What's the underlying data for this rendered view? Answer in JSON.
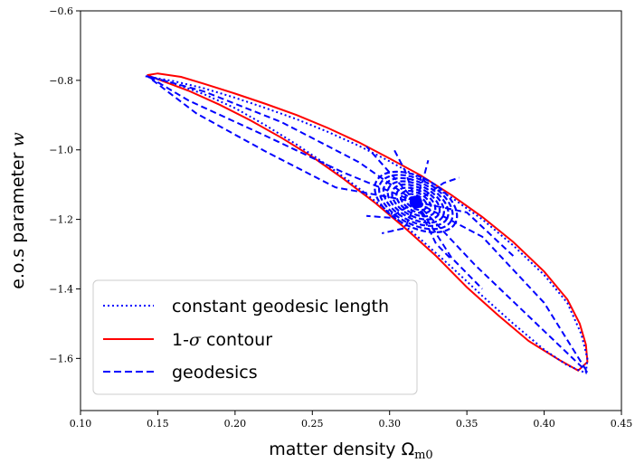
{
  "chart_data": {
    "type": "line",
    "xlabel": "matter density Ω",
    "xlabel_sub": "m0",
    "ylabel": "e.o.s parameter ",
    "ylabel_var": "w",
    "xlim": [
      0.1,
      0.45
    ],
    "ylim": [
      -1.75,
      -0.6
    ],
    "xticks": [
      "0.10",
      "0.15",
      "0.20",
      "0.25",
      "0.30",
      "0.35",
      "0.40",
      "0.45"
    ],
    "yticks": [
      "−0.6",
      "−0.8",
      "−1.0",
      "−1.2",
      "−1.4",
      "−1.6"
    ],
    "legend_placement": "lower-left",
    "grid": false,
    "center": [
      0.317,
      -1.15
    ],
    "legend": [
      {
        "label": "constant geodesic length",
        "style": "dotted",
        "color": "#0000ff"
      },
      {
        "label": "1-σ contour",
        "style": "solid",
        "color": "#ff0000"
      },
      {
        "label": "geodesics",
        "style": "dashed",
        "color": "#0000ff"
      }
    ],
    "series": [
      {
        "name": "1-σ contour",
        "style": "solid",
        "color": "#ff0000",
        "x": [
          0.143,
          0.15,
          0.165,
          0.18,
          0.2,
          0.22,
          0.24,
          0.26,
          0.28,
          0.3,
          0.32,
          0.34,
          0.36,
          0.38,
          0.4,
          0.415,
          0.423,
          0.427,
          0.428,
          0.422,
          0.41,
          0.39,
          0.37,
          0.35,
          0.33,
          0.31,
          0.29,
          0.27,
          0.25,
          0.23,
          0.21,
          0.19,
          0.17,
          0.155,
          0.143
        ],
        "y": [
          -0.785,
          -0.78,
          -0.79,
          -0.81,
          -0.838,
          -0.868,
          -0.9,
          -0.937,
          -0.978,
          -1.025,
          -1.073,
          -1.13,
          -1.193,
          -1.265,
          -1.35,
          -1.43,
          -1.5,
          -1.56,
          -1.61,
          -1.635,
          -1.605,
          -1.55,
          -1.475,
          -1.395,
          -1.305,
          -1.225,
          -1.15,
          -1.083,
          -1.02,
          -0.965,
          -0.915,
          -0.87,
          -0.83,
          -0.805,
          -0.785
        ]
      },
      {
        "name": "constant geodesic length",
        "style": "dotted",
        "color": "#0000ff",
        "x": [
          0.142,
          0.16,
          0.18,
          0.2,
          0.22,
          0.24,
          0.26,
          0.28,
          0.3,
          0.32,
          0.34,
          0.36,
          0.38,
          0.4,
          0.415,
          0.424,
          0.428,
          0.427,
          0.415,
          0.4,
          0.38,
          0.36,
          0.34,
          0.32,
          0.3,
          0.28,
          0.26,
          0.24,
          0.22,
          0.2,
          0.18,
          0.16,
          0.142
        ],
        "y": [
          -0.788,
          -0.802,
          -0.823,
          -0.85,
          -0.88,
          -0.912,
          -0.948,
          -0.988,
          -1.033,
          -1.082,
          -1.137,
          -1.2,
          -1.275,
          -1.36,
          -1.44,
          -1.53,
          -1.6,
          -1.642,
          -1.62,
          -1.575,
          -1.5,
          -1.42,
          -1.337,
          -1.257,
          -1.18,
          -1.11,
          -1.045,
          -0.985,
          -0.93,
          -0.88,
          -0.84,
          -0.808,
          -0.788
        ]
      },
      {
        "name": "geodesics",
        "style": "dashed",
        "color": "#0000ff",
        "lines": [
          {
            "x": [
              0.317,
              0.28,
              0.23,
              0.18,
              0.143
            ],
            "y": [
              -1.15,
              -1.035,
              -0.92,
              -0.832,
              -0.787
            ]
          },
          {
            "x": [
              0.317,
              0.27,
              0.22,
              0.17,
              0.143
            ],
            "y": [
              -1.15,
              -1.065,
              -0.96,
              -0.858,
              -0.787
            ]
          },
          {
            "x": [
              0.317,
              0.265,
              0.22,
              0.175,
              0.143
            ],
            "y": [
              -1.15,
              -1.108,
              -1.005,
              -0.895,
              -0.787
            ]
          },
          {
            "x": [
              0.317,
              0.3,
              0.285
            ],
            "y": [
              -1.15,
              -1.065,
              -0.99
            ]
          },
          {
            "x": [
              0.317,
              0.31,
              0.303
            ],
            "y": [
              -1.15,
              -1.06,
              -1.0
            ]
          },
          {
            "x": [
              0.317,
              0.322,
              0.325
            ],
            "y": [
              -1.15,
              -1.08,
              -1.03
            ]
          },
          {
            "x": [
              0.317,
              0.335,
              0.345
            ],
            "y": [
              -1.15,
              -1.095,
              -1.08
            ]
          },
          {
            "x": [
              0.317,
              0.35,
              0.38
            ],
            "y": [
              -1.15,
              -1.18,
              -1.305
            ]
          },
          {
            "x": [
              0.317,
              0.36,
              0.4,
              0.428
            ],
            "y": [
              -1.15,
              -1.25,
              -1.44,
              -1.64
            ]
          },
          {
            "x": [
              0.317,
              0.355,
              0.395,
              0.428
            ],
            "y": [
              -1.15,
              -1.33,
              -1.5,
              -1.64
            ]
          },
          {
            "x": [
              0.317,
              0.34,
              0.36
            ],
            "y": [
              -1.15,
              -1.31,
              -1.4
            ]
          },
          {
            "x": [
              0.317,
              0.33,
              0.34
            ],
            "y": [
              -1.15,
              -1.27,
              -1.315
            ]
          },
          {
            "x": [
              0.317,
              0.31,
              0.295
            ],
            "y": [
              -1.15,
              -1.225,
              -1.24
            ]
          },
          {
            "x": [
              0.317,
              0.3,
              0.285
            ],
            "y": [
              -1.15,
              -1.195,
              -1.19
            ]
          }
        ]
      }
    ]
  }
}
